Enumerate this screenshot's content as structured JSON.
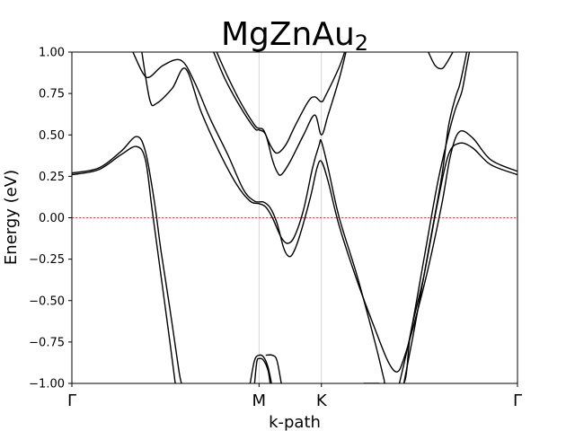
{
  "chart_data": {
    "type": "line",
    "title": "MgZnAu",
    "title_subscript": "2",
    "xlabel": "k-path",
    "ylabel": "Energy (eV)",
    "ylim": [
      -1.0,
      1.0
    ],
    "xlim": [
      0,
      1
    ],
    "yticks": [
      {
        "value": 1.0,
        "label": "1.00"
      },
      {
        "value": 0.75,
        "label": "0.75"
      },
      {
        "value": 0.5,
        "label": "0.50"
      },
      {
        "value": 0.25,
        "label": "0.25"
      },
      {
        "value": 0.0,
        "label": "0.00"
      },
      {
        "value": -0.25,
        "label": "−0.25"
      },
      {
        "value": -0.5,
        "label": "−0.50"
      },
      {
        "value": -0.75,
        "label": "−0.75"
      },
      {
        "value": -1.0,
        "label": "−1.00"
      }
    ],
    "kpoints": [
      {
        "x": 0.0,
        "label": "Γ"
      },
      {
        "x": 0.42,
        "label": "M"
      },
      {
        "x": 0.56,
        "label": "K"
      },
      {
        "x": 1.0,
        "label": "Γ"
      }
    ],
    "fermi_level": 0.0,
    "colors": {
      "bands": "#000000",
      "fermi": "#ff0000",
      "kpoint_lines": "#cccccc"
    },
    "grid": false,
    "series": [
      {
        "values": [
          [
            0.0,
            0.27
          ],
          [
            0.06,
            0.3
          ],
          [
            0.11,
            0.4
          ],
          [
            0.145,
            0.49
          ],
          [
            0.165,
            0.4
          ],
          [
            0.185,
            0.1
          ],
          [
            0.2,
            -0.2
          ],
          [
            0.22,
            -0.55
          ],
          [
            0.24,
            -0.92
          ],
          [
            0.246,
            -1.0
          ]
        ]
      },
      {
        "values": [
          [
            0.0,
            0.26
          ],
          [
            0.06,
            0.29
          ],
          [
            0.11,
            0.38
          ],
          [
            0.145,
            0.43
          ],
          [
            0.165,
            0.35
          ],
          [
            0.18,
            0.05
          ],
          [
            0.2,
            -0.35
          ],
          [
            0.22,
            -0.75
          ],
          [
            0.232,
            -1.0
          ]
        ]
      },
      {
        "values": [
          [
            0.137,
            1.0
          ],
          [
            0.16,
            0.87
          ],
          [
            0.175,
            0.85
          ],
          [
            0.205,
            0.92
          ],
          [
            0.245,
            0.95
          ],
          [
            0.275,
            0.82
          ],
          [
            0.31,
            0.6
          ],
          [
            0.35,
            0.38
          ],
          [
            0.385,
            0.17
          ],
          [
            0.41,
            0.1
          ],
          [
            0.43,
            0.095
          ],
          [
            0.445,
            0.06
          ],
          [
            0.46,
            -0.03
          ],
          [
            0.475,
            -0.18
          ],
          [
            0.485,
            -0.23
          ],
          [
            0.495,
            -0.22
          ],
          [
            0.51,
            -0.12
          ],
          [
            0.535,
            0.12
          ],
          [
            0.55,
            0.3
          ],
          [
            0.56,
            0.34
          ],
          [
            0.575,
            0.22
          ],
          [
            0.6,
            -0.05
          ],
          [
            0.64,
            -0.38
          ],
          [
            0.68,
            -0.67
          ],
          [
            0.71,
            -0.87
          ],
          [
            0.73,
            -0.93
          ],
          [
            0.745,
            -0.85
          ],
          [
            0.77,
            -0.62
          ],
          [
            0.8,
            -0.3
          ],
          [
            0.83,
            0.08
          ],
          [
            0.85,
            0.38
          ],
          [
            0.87,
            0.52
          ],
          [
            0.9,
            0.48
          ],
          [
            0.94,
            0.35
          ],
          [
            1.0,
            0.28
          ]
        ]
      },
      {
        "values": [
          [
            0.157,
            1.0
          ],
          [
            0.175,
            0.71
          ],
          [
            0.19,
            0.69
          ],
          [
            0.225,
            0.78
          ],
          [
            0.255,
            0.9
          ],
          [
            0.29,
            0.64
          ],
          [
            0.33,
            0.4
          ],
          [
            0.37,
            0.2
          ],
          [
            0.4,
            0.1
          ],
          [
            0.42,
            0.085
          ],
          [
            0.435,
            0.065
          ],
          [
            0.45,
            0.0
          ],
          [
            0.47,
            -0.12
          ],
          [
            0.485,
            -0.155
          ],
          [
            0.5,
            -0.11
          ],
          [
            0.52,
            0.05
          ],
          [
            0.54,
            0.3
          ],
          [
            0.555,
            0.44
          ],
          [
            0.56,
            0.46
          ],
          [
            0.575,
            0.3
          ],
          [
            0.6,
            0.0
          ],
          [
            0.64,
            -0.35
          ],
          [
            0.68,
            -0.75
          ],
          [
            0.7,
            -0.97
          ],
          [
            0.704,
            -1.0
          ],
          [
            0.745,
            -1.0
          ],
          [
            0.76,
            -0.7
          ],
          [
            0.79,
            -0.35
          ],
          [
            0.82,
            0.08
          ],
          [
            0.845,
            0.38
          ],
          [
            0.87,
            0.45
          ],
          [
            0.9,
            0.42
          ],
          [
            0.94,
            0.32
          ],
          [
            1.0,
            0.26
          ]
        ]
      },
      {
        "values": [
          [
            0.325,
            1.0
          ],
          [
            0.35,
            0.85
          ],
          [
            0.38,
            0.69
          ],
          [
            0.41,
            0.56
          ],
          [
            0.42,
            0.54
          ],
          [
            0.43,
            0.53
          ],
          [
            0.445,
            0.44
          ],
          [
            0.46,
            0.39
          ],
          [
            0.48,
            0.44
          ],
          [
            0.5,
            0.55
          ],
          [
            0.53,
            0.7
          ],
          [
            0.545,
            0.73
          ],
          [
            0.56,
            0.7
          ],
          [
            0.57,
            0.74
          ],
          [
            0.6,
            0.91
          ],
          [
            0.612,
            1.0
          ]
        ]
      },
      {
        "values": [
          [
            0.318,
            1.0
          ],
          [
            0.345,
            0.83
          ],
          [
            0.38,
            0.66
          ],
          [
            0.41,
            0.54
          ],
          [
            0.42,
            0.53
          ],
          [
            0.435,
            0.5
          ],
          [
            0.45,
            0.35
          ],
          [
            0.46,
            0.28
          ],
          [
            0.47,
            0.26
          ],
          [
            0.49,
            0.34
          ],
          [
            0.52,
            0.5
          ],
          [
            0.545,
            0.62
          ],
          [
            0.56,
            0.5
          ],
          [
            0.575,
            0.62
          ],
          [
            0.6,
            0.84
          ],
          [
            0.615,
            1.0
          ]
        ]
      },
      {
        "values": [
          [
            0.8,
            1.0
          ],
          [
            0.815,
            0.92
          ],
          [
            0.83,
            0.9
          ],
          [
            0.84,
            0.93
          ],
          [
            0.855,
            1.0
          ]
        ]
      },
      {
        "values": [
          [
            0.655,
            -1.0
          ],
          [
            0.69,
            -1.0
          ]
        ]
      },
      {
        "values": [
          [
            0.4,
            -1.0
          ],
          [
            0.41,
            -0.86
          ],
          [
            0.42,
            -0.83
          ],
          [
            0.43,
            -0.84
          ],
          [
            0.44,
            -0.9
          ],
          [
            0.448,
            -1.0
          ]
        ]
      },
      {
        "values": [
          [
            0.41,
            -1.0
          ],
          [
            0.415,
            -0.87
          ],
          [
            0.42,
            -0.85
          ],
          [
            0.43,
            -0.86
          ],
          [
            0.44,
            -0.92
          ],
          [
            0.445,
            -1.0
          ]
        ]
      },
      {
        "values": [
          [
            0.435,
            -0.83
          ],
          [
            0.45,
            -0.83
          ],
          [
            0.46,
            -0.86
          ],
          [
            0.47,
            -1.0
          ]
        ]
      },
      {
        "values": [
          [
            0.745,
            -1.0
          ],
          [
            0.77,
            -0.65
          ],
          [
            0.8,
            -0.2
          ],
          [
            0.83,
            0.25
          ],
          [
            0.845,
            0.55
          ],
          [
            0.86,
            0.72
          ],
          [
            0.87,
            0.8
          ],
          [
            0.88,
            0.92
          ],
          [
            0.886,
            1.0
          ]
        ]
      },
      {
        "values": [
          [
            0.735,
            -1.0
          ],
          [
            0.76,
            -0.7
          ],
          [
            0.79,
            -0.25
          ],
          [
            0.82,
            0.2
          ],
          [
            0.845,
            0.5
          ],
          [
            0.86,
            0.65
          ],
          [
            0.875,
            0.76
          ],
          [
            0.885,
            0.9
          ],
          [
            0.892,
            1.0
          ]
        ]
      }
    ]
  }
}
